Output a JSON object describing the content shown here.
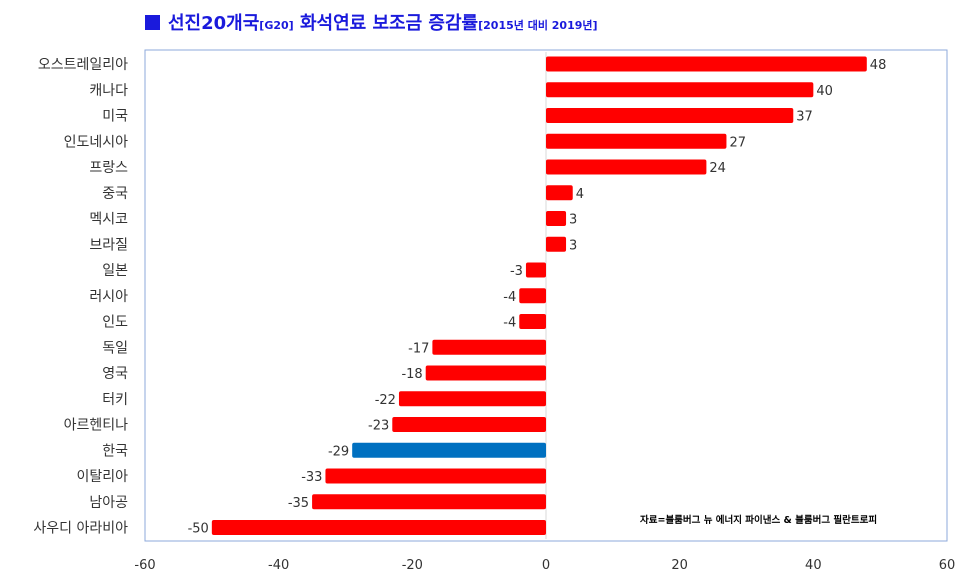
{
  "title": {
    "main": "선진20개국",
    "tag": "[G20]",
    "main2": " 화석연료 보조금 증감률",
    "period": "[2015년 대비 2019년]"
  },
  "source": "자료=블룸버그 뉴 에너지 파이낸스 & 블룸버그 필란트로피",
  "colors": {
    "default": "#ff0000",
    "highlight": "#0070c0",
    "title": "#1a1adc",
    "frame": "#8eaadb"
  },
  "chart_data": {
    "type": "bar",
    "orientation": "horizontal",
    "title": "선진20개국[G20] 화석연료 보조금 증감률[2015년 대비 2019년]",
    "categories": [
      "오스트레일리아",
      "캐나다",
      "미국",
      "인도네시아",
      "프랑스",
      "중국",
      "멕시코",
      "브라질",
      "일본",
      "러시아",
      "인도",
      "독일",
      "영국",
      "터키",
      "아르헨티나",
      "한국",
      "이탈리아",
      "남아공",
      "사우디 아라비아"
    ],
    "values": [
      48,
      40,
      37,
      27,
      24,
      4,
      3,
      3,
      -3,
      -4,
      -4,
      -17,
      -18,
      -22,
      -23,
      -29,
      -33,
      -35,
      -50
    ],
    "highlight": "한국",
    "xlim": [
      -60,
      60
    ],
    "xticks": [
      -60,
      -40,
      -20,
      0,
      20,
      40,
      60
    ],
    "grid": false,
    "legend": "none"
  }
}
